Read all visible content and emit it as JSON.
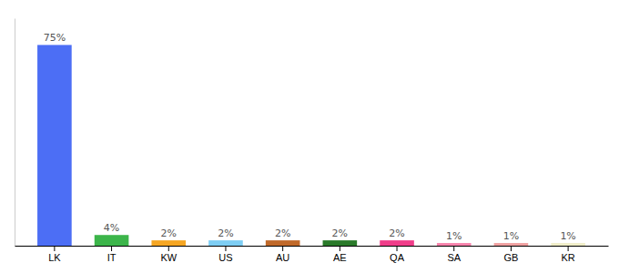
{
  "chart_data": {
    "type": "bar",
    "categories": [
      "LK",
      "IT",
      "KW",
      "US",
      "AU",
      "AE",
      "QA",
      "SA",
      "GB",
      "KR"
    ],
    "values": [
      75,
      4,
      2,
      2,
      2,
      2,
      2,
      1,
      1,
      1
    ],
    "value_labels": [
      "75%",
      "4%",
      "2%",
      "2%",
      "2%",
      "2%",
      "2%",
      "1%",
      "1%",
      "1%"
    ],
    "colors": [
      "#4c6ef5",
      "#3cb54a",
      "#f5a623",
      "#7ecef4",
      "#c0692a",
      "#2a7a2a",
      "#f03e8a",
      "#f783ac",
      "#f0a0a0",
      "#f0eec8"
    ],
    "ylim": [
      0,
      85
    ],
    "data_labels": true,
    "tick_labels": "x",
    "grid": false
  }
}
